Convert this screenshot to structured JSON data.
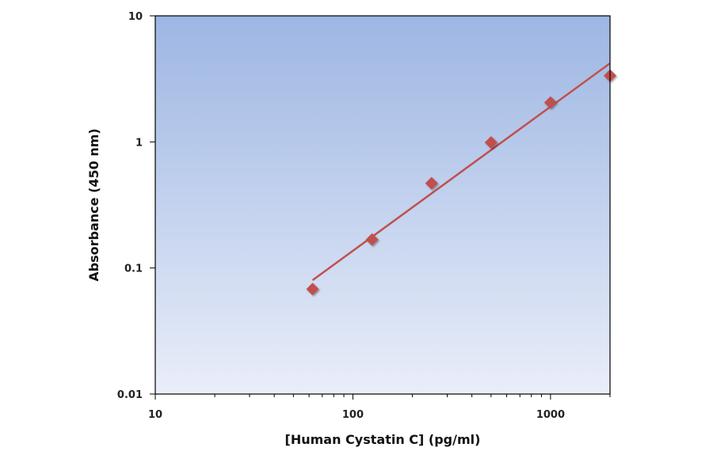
{
  "chart_data": {
    "type": "scatter",
    "xlabel": "[Human Cystatin C] (pg/ml)",
    "ylabel": "Absorbance (450 nm)",
    "x_scale": "log",
    "y_scale": "log",
    "xlim": [
      10,
      2000
    ],
    "ylim": [
      0.01,
      10
    ],
    "x_tick_labels": [
      "10",
      "100",
      "1000"
    ],
    "y_tick_labels": [
      "0.01",
      "0.1",
      "1",
      "10"
    ],
    "grid": false,
    "background": "vertical gradient, light to medium blue",
    "series": [
      {
        "kind": "points",
        "marker": "diamond",
        "color": "#c0504d",
        "x": [
          62.5,
          125,
          250,
          500,
          1000,
          2000
        ],
        "y": [
          0.068,
          0.168,
          0.47,
          0.99,
          2.05,
          3.35
        ]
      },
      {
        "kind": "fit-line",
        "color": "#c0504d",
        "x": [
          62.5,
          2000
        ],
        "y": [
          0.08,
          4.2
        ]
      }
    ]
  }
}
